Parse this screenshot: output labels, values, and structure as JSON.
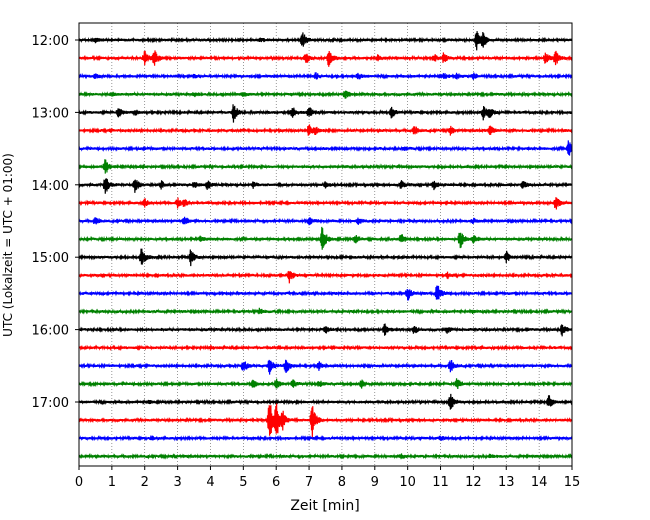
{
  "chart_data": {
    "type": "line",
    "title": "",
    "xlabel": "Zeit  [min]",
    "ylabel": "UTC (Lokalzeit = UTC + 01:00)",
    "xlim": [
      0,
      15
    ],
    "x_ticks": [
      "0",
      "1",
      "2",
      "3",
      "4",
      "5",
      "6",
      "7",
      "8",
      "9",
      "10",
      "11",
      "12",
      "13",
      "14",
      "15"
    ],
    "y_ticks": [
      "12:00",
      "13:00",
      "14:00",
      "15:00",
      "16:00",
      "17:00"
    ],
    "grid": "vertical dotted lines at each minute",
    "trace_interval_min": 15,
    "color_cycle": [
      "#000000",
      "#ff0000",
      "#0000ff",
      "#008000"
    ],
    "series": [
      {
        "start": "12:00",
        "color": "#000000",
        "events": [
          [
            0.5,
            2
          ],
          [
            5.5,
            2
          ],
          [
            6.8,
            9
          ],
          [
            12.1,
            10
          ],
          [
            12.3,
            7
          ]
        ]
      },
      {
        "start": "12:15",
        "color": "#ff0000",
        "events": [
          [
            2.0,
            7
          ],
          [
            2.3,
            8
          ],
          [
            6.9,
            6
          ],
          [
            7.6,
            9
          ],
          [
            9.1,
            3
          ],
          [
            10.8,
            4
          ],
          [
            11.1,
            5
          ],
          [
            14.2,
            6
          ],
          [
            14.5,
            7
          ]
        ]
      },
      {
        "start": "12:30",
        "color": "#0000ff",
        "events": [
          [
            0.5,
            2
          ],
          [
            3.5,
            2
          ],
          [
            7.2,
            3
          ],
          [
            8.5,
            3
          ],
          [
            11.1,
            3
          ],
          [
            11.5,
            3
          ],
          [
            12.0,
            3
          ]
        ]
      },
      {
        "start": "12:45",
        "color": "#008000",
        "events": [
          [
            1.0,
            2
          ],
          [
            3.5,
            2
          ],
          [
            5.0,
            2
          ],
          [
            8.1,
            5
          ]
        ]
      },
      {
        "start": "13:00",
        "color": "#000000",
        "events": [
          [
            1.2,
            5
          ],
          [
            1.7,
            3
          ],
          [
            4.7,
            9
          ],
          [
            6.5,
            6
          ],
          [
            7.0,
            6
          ],
          [
            9.5,
            6
          ],
          [
            12.3,
            7
          ],
          [
            12.5,
            5
          ]
        ]
      },
      {
        "start": "13:15",
        "color": "#ff0000",
        "events": [
          [
            7.0,
            6
          ],
          [
            7.2,
            4
          ],
          [
            10.2,
            5
          ],
          [
            11.3,
            4
          ],
          [
            12.5,
            5
          ]
        ]
      },
      {
        "start": "13:30",
        "color": "#0000ff",
        "events": [
          [
            9.9,
            2
          ],
          [
            14.9,
            8
          ]
        ]
      },
      {
        "start": "13:45",
        "color": "#008000",
        "events": [
          [
            0.8,
            8
          ]
        ]
      },
      {
        "start": "14:00",
        "color": "#000000",
        "events": [
          [
            0.8,
            10
          ],
          [
            1.7,
            8
          ],
          [
            2.5,
            4
          ],
          [
            3.5,
            3
          ],
          [
            3.9,
            5
          ],
          [
            5.3,
            3
          ],
          [
            7.5,
            3
          ],
          [
            9.8,
            4
          ],
          [
            10.8,
            4
          ],
          [
            13.5,
            4
          ]
        ]
      },
      {
        "start": "14:15",
        "color": "#ff0000",
        "events": [
          [
            2.0,
            4
          ],
          [
            3.0,
            5
          ],
          [
            3.2,
            4
          ],
          [
            14.5,
            7
          ]
        ]
      },
      {
        "start": "14:30",
        "color": "#0000ff",
        "events": [
          [
            0.5,
            4
          ],
          [
            3.2,
            5
          ],
          [
            7.0,
            5
          ],
          [
            8.5,
            3
          ],
          [
            12.0,
            2
          ]
        ]
      },
      {
        "start": "14:45",
        "color": "#008000",
        "events": [
          [
            7.4,
            14
          ],
          [
            8.4,
            5
          ],
          [
            9.8,
            5
          ],
          [
            11.6,
            10
          ],
          [
            12.0,
            4
          ],
          [
            3.7,
            3
          ]
        ]
      },
      {
        "start": "15:00",
        "color": "#000000",
        "events": [
          [
            1.9,
            10
          ],
          [
            3.4,
            8
          ],
          [
            13.0,
            6
          ]
        ]
      },
      {
        "start": "15:15",
        "color": "#ff0000",
        "events": [
          [
            6.4,
            7
          ],
          [
            11.2,
            3
          ]
        ]
      },
      {
        "start": "15:30",
        "color": "#0000ff",
        "events": [
          [
            10.0,
            8
          ],
          [
            10.9,
            10
          ]
        ]
      },
      {
        "start": "15:45",
        "color": "#008000",
        "events": [
          [
            5.5,
            3
          ],
          [
            12.0,
            2
          ]
        ]
      },
      {
        "start": "16:00",
        "color": "#000000",
        "events": [
          [
            7.5,
            3
          ],
          [
            9.3,
            6
          ],
          [
            10.2,
            4
          ],
          [
            11.2,
            3
          ],
          [
            14.7,
            6
          ]
        ]
      },
      {
        "start": "16:15",
        "color": "#ff0000",
        "events": [
          [
            4.0,
            2
          ]
        ]
      },
      {
        "start": "16:30",
        "color": "#0000ff",
        "events": [
          [
            5.0,
            7
          ],
          [
            5.8,
            8
          ],
          [
            6.3,
            8
          ],
          [
            7.3,
            4
          ],
          [
            11.3,
            7
          ]
        ]
      },
      {
        "start": "16:45",
        "color": "#008000",
        "events": [
          [
            5.3,
            5
          ],
          [
            6.0,
            5
          ],
          [
            6.5,
            4
          ],
          [
            7.3,
            3
          ],
          [
            8.6,
            4
          ],
          [
            11.5,
            6
          ]
        ]
      },
      {
        "start": "17:00",
        "color": "#000000",
        "events": [
          [
            2.1,
            2
          ],
          [
            11.3,
            8
          ],
          [
            14.3,
            7
          ]
        ]
      },
      {
        "start": "17:15",
        "color": "#ff0000",
        "events": [
          [
            5.8,
            22
          ],
          [
            6.0,
            20
          ],
          [
            7.1,
            18
          ],
          [
            6.2,
            8
          ]
        ]
      },
      {
        "start": "17:30",
        "color": "#0000ff",
        "events": [
          [
            2.2,
            2
          ],
          [
            11.0,
            2
          ]
        ]
      },
      {
        "start": "17:45",
        "color": "#008000",
        "events": [
          [
            9.8,
            2
          ],
          [
            12.5,
            2
          ]
        ]
      }
    ]
  }
}
